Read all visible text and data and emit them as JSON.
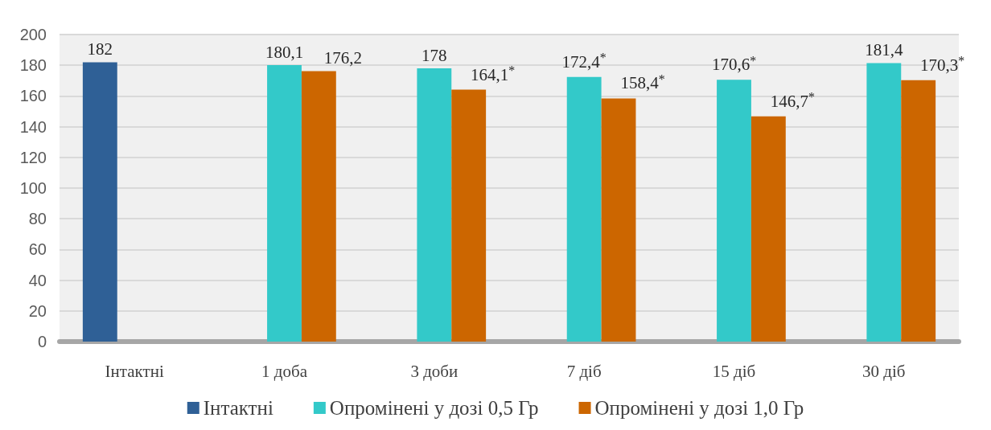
{
  "chart_data": {
    "type": "bar",
    "categories": [
      "Інтактні",
      "1 доба",
      "3 доби",
      "7 діб",
      "15 діб",
      "30 діб"
    ],
    "series": [
      {
        "name": "Інтактні",
        "color": "#2f6096",
        "values": [
          182,
          null,
          null,
          null,
          null,
          null
        ],
        "value_labels": [
          "182",
          null,
          null,
          null,
          null,
          null
        ]
      },
      {
        "name": "Опромінені у дозі 0,5 Гр",
        "color": "#33c9c9",
        "values": [
          null,
          180.1,
          178,
          172.4,
          170.6,
          181.4
        ],
        "value_labels": [
          null,
          "180,1",
          "178",
          "172,4$^{*}$",
          "170,6$^{*}$",
          "181,4"
        ]
      },
      {
        "name": "Опромінені у дозі 1,0 Гр",
        "color": "#cc6600",
        "values": [
          null,
          176.2,
          164.1,
          158.4,
          146.7,
          170.3
        ],
        "value_labels": [
          null,
          "176,2",
          "164,1$^{*}$",
          "158,4$^{*}$",
          "146,7$^{*}$",
          "170,3$^{*}$"
        ]
      }
    ],
    "ylim": [
      0,
      200
    ],
    "yticks": [
      0,
      20,
      40,
      60,
      80,
      100,
      120,
      140,
      160,
      180,
      200
    ],
    "grid": "y",
    "legend": "bottom"
  }
}
